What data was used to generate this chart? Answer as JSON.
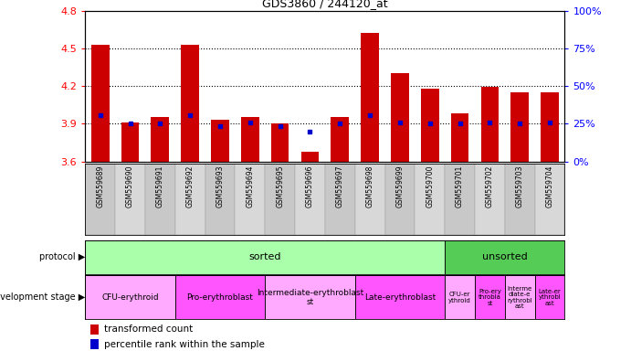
{
  "title": "GDS3860 / 244120_at",
  "samples": [
    "GSM559689",
    "GSM559690",
    "GSM559691",
    "GSM559692",
    "GSM559693",
    "GSM559694",
    "GSM559695",
    "GSM559696",
    "GSM559697",
    "GSM559698",
    "GSM559699",
    "GSM559700",
    "GSM559701",
    "GSM559702",
    "GSM559703",
    "GSM559704"
  ],
  "bar_values": [
    4.53,
    3.91,
    3.95,
    4.53,
    3.93,
    3.95,
    3.9,
    3.68,
    3.95,
    4.62,
    4.3,
    4.18,
    3.98,
    4.19,
    4.15,
    4.15
  ],
  "blue_dot_values": [
    3.97,
    3.9,
    3.9,
    3.97,
    3.88,
    3.91,
    3.88,
    3.84,
    3.9,
    3.97,
    3.91,
    3.9,
    3.9,
    3.91,
    3.9,
    3.91
  ],
  "ylim": [
    3.6,
    4.8
  ],
  "yticks": [
    3.6,
    3.9,
    4.2,
    4.5,
    4.8
  ],
  "right_yticks": [
    0,
    25,
    50,
    75,
    100
  ],
  "right_ylim": [
    0,
    100
  ],
  "bar_color": "#cc0000",
  "dot_color": "#0000cc",
  "chart_bg": "#ffffff",
  "label_bg_even": "#c8c8c8",
  "label_bg_odd": "#d8d8d8",
  "protocol_sorted_color": "#aaffaa",
  "protocol_unsorted_color": "#55cc55",
  "dev_colors": [
    "#ff99ff",
    "#ff55ff",
    "#ff99ff",
    "#ff55ff",
    "#ff99ff",
    "#ff55ff",
    "#ff99ff",
    "#ff55ff"
  ],
  "sorted_count": 12,
  "dev_stage_groups": [
    {
      "label": "CFU-erythroid",
      "start": 0,
      "end": 2
    },
    {
      "label": "Pro-erythroblast",
      "start": 3,
      "end": 5
    },
    {
      "label": "Intermediate-erythroblast\nst",
      "start": 6,
      "end": 8
    },
    {
      "label": "Late-erythroblast",
      "start": 9,
      "end": 11
    },
    {
      "label": "CFU-er\nythroid",
      "start": 12,
      "end": 12
    },
    {
      "label": "Pro-ery\nthrobla\nst",
      "start": 13,
      "end": 13
    },
    {
      "label": "Interme\ndiate-e\nrythrobl\nast",
      "start": 14,
      "end": 14
    },
    {
      "label": "Late-er\nythrobl\nast",
      "start": 15,
      "end": 15
    }
  ],
  "legend_items": [
    {
      "color": "#cc0000",
      "label": "transformed count"
    },
    {
      "color": "#0000cc",
      "label": "percentile rank within the sample"
    }
  ]
}
